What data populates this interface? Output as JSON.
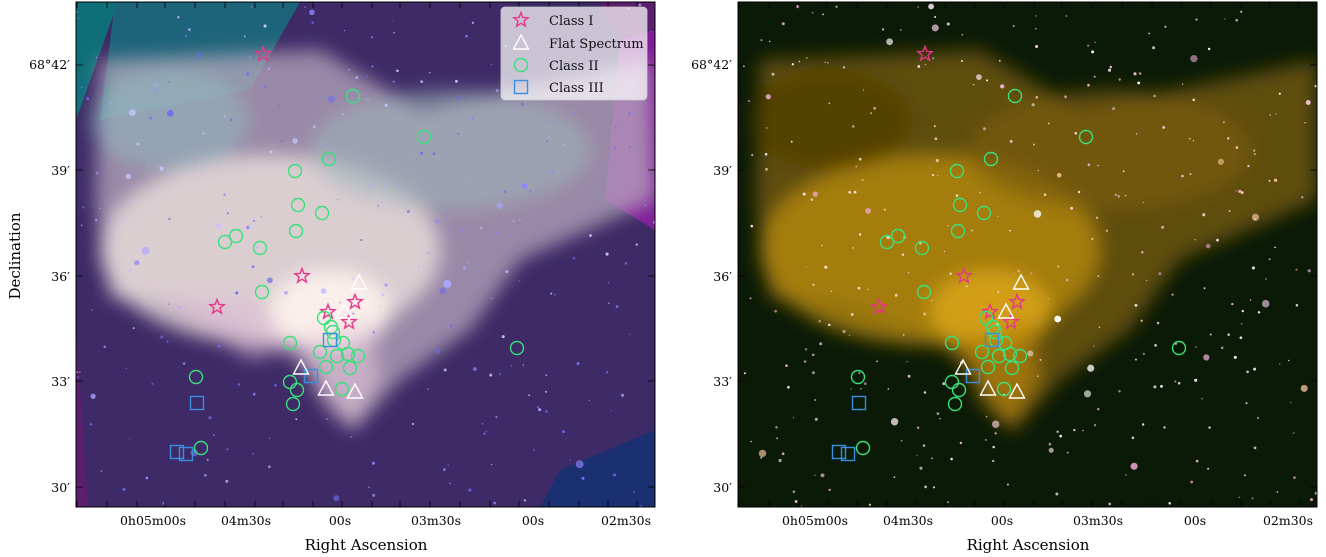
{
  "axes": {
    "xlabel": "Right Ascension",
    "ylabel": "Declination",
    "left_x_ticks": [
      "0h05m00s",
      "04m30s",
      "00s",
      "03m30s",
      "00s",
      "02m30s"
    ],
    "left_y_ticks": [
      "68°42′",
      "39′",
      "36′",
      "33′",
      "30′"
    ],
    "right_x_ticks": [
      "0h05m00s",
      "04m30s",
      "00s",
      "03m30s",
      "00s",
      "02m30s"
    ],
    "right_y_ticks": [
      "68°42′",
      "39′",
      "36′",
      "33′",
      "30′"
    ]
  },
  "legend": {
    "items": [
      {
        "label": "Class I",
        "marker": "star",
        "color": "#e8358a"
      },
      {
        "label": "Flat Spectrum",
        "marker": "triangle",
        "color": "#ffffff"
      },
      {
        "label": "Class II",
        "marker": "circle",
        "color": "#39e07c"
      },
      {
        "label": "Class III",
        "marker": "square",
        "color": "#3a8fe0"
      }
    ]
  },
  "colors": {
    "class_i": "#e8358a",
    "flat": "#ffffff",
    "class_ii": "#39e07c",
    "class_iii": "#3a8fe0"
  }
}
